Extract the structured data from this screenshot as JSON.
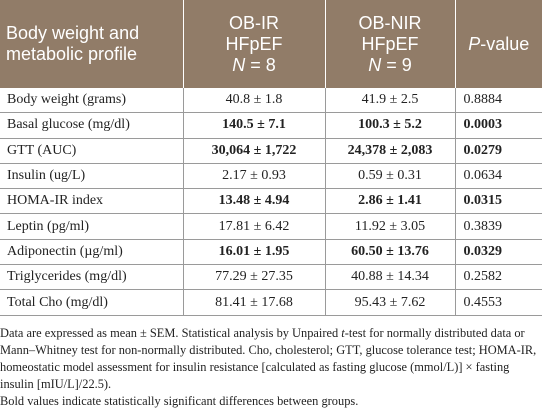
{
  "table": {
    "header": [
      {
        "lines": [
          "Body weight and",
          "metabolic profile"
        ]
      },
      {
        "lines": [
          "OB-IR",
          "HFpEF"
        ],
        "n_label": "N",
        "n_value": "= 8"
      },
      {
        "lines": [
          "OB-NIR",
          "HFpEF"
        ],
        "n_label": "N",
        "n_value": "= 9"
      },
      {
        "italic": "P",
        "rest": "-value"
      }
    ],
    "rows": [
      {
        "cells": [
          "Body weight (grams)",
          "40.8 ± 1.8",
          "41.9 ± 2.5",
          "0.8884"
        ],
        "bold": false
      },
      {
        "cells": [
          "Basal glucose (mg/dl)",
          "140.5 ± 7.1",
          "100.3 ± 5.2",
          "0.0003"
        ],
        "bold": true
      },
      {
        "cells": [
          "GTT (AUC)",
          "30,064 ± 1,722",
          "24,378 ± 2,083",
          "0.0279"
        ],
        "bold": true
      },
      {
        "cells": [
          "Insulin (ug/L)",
          "2.17 ± 0.93",
          "0.59 ± 0.31",
          "0.0634"
        ],
        "bold": false
      },
      {
        "cells": [
          "HOMA-IR index",
          "13.48 ± 4.94",
          "2.86 ± 1.41",
          "0.0315"
        ],
        "bold": true
      },
      {
        "cells": [
          "Leptin (pg/ml)",
          "17.81 ± 6.42",
          "11.92 ± 3.05",
          "0.3839"
        ],
        "bold": false
      },
      {
        "cells": [
          "Adiponectin (µg/ml)",
          "16.01 ± 1.95",
          "60.50 ± 13.76",
          "0.0329"
        ],
        "bold": true
      },
      {
        "cells": [
          "Triglycerides (mg/dl)",
          "77.29 ± 27.35",
          "40.88 ± 14.34",
          "0.2582"
        ],
        "bold": false
      },
      {
        "cells": [
          "Total Cho (mg/dl)",
          "81.41 ± 17.68",
          "95.43 ± 7.62",
          "0.4553"
        ],
        "bold": false
      }
    ]
  },
  "footnotes": [
    [
      {
        "text": "Data are expressed as mean ± SEM. Statistical analysis by Unpaired ",
        "italic": false
      },
      {
        "text": "t",
        "italic": true
      },
      {
        "text": "-test for normally distributed data or Mann–Whitney test for non-normally distributed. Cho, cholesterol; GTT, glucose tolerance test; HOMA-IR, homeostatic model assessment for insulin resistance [calculated as fasting glucose (mmol/L)] × fasting insulin [mIU/L]/22.5).",
        "italic": false
      }
    ],
    [
      {
        "text": "Bold values indicate statistically significant differences between groups.",
        "italic": false
      }
    ]
  ]
}
